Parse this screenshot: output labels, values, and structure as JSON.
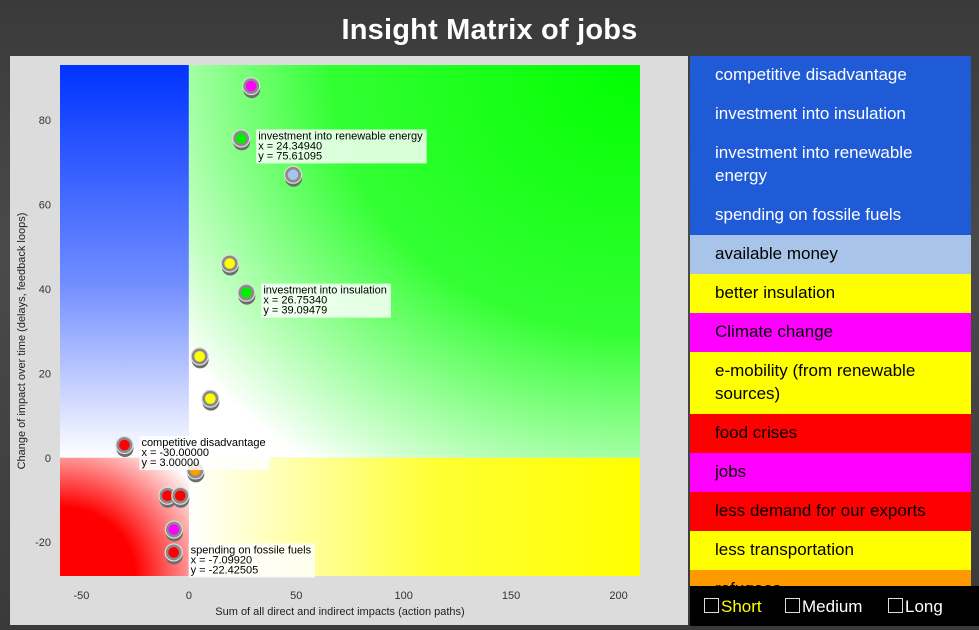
{
  "title": "Insight Matrix of jobs",
  "chart_data": {
    "type": "scatter",
    "title": "Insight Matrix of jobs",
    "xlabel": "Sum of all direct and indirect impacts (action paths)",
    "ylabel": "Change of impact over time (delays, feedback loops)",
    "xlim": [
      -60,
      210
    ],
    "ylim": [
      -28,
      93
    ],
    "xticks": [
      -50,
      0,
      50,
      100,
      150,
      200
    ],
    "yticks": [
      -20,
      0,
      20,
      40,
      60,
      80
    ],
    "points": [
      {
        "x": 29,
        "y": 88,
        "color": "#ff00ff",
        "label": ""
      },
      {
        "x": 24.3494,
        "y": 75.61095,
        "color": "#00ee00",
        "label": "investment into renewable energy",
        "xlabel_text": "x = 24.34940",
        "ylabel_text": "y = 75.61095"
      },
      {
        "x": 48.5,
        "y": 67,
        "color": "#a8c4e8",
        "label": ""
      },
      {
        "x": 19,
        "y": 46,
        "color": "#ffff00",
        "label": ""
      },
      {
        "x": 26.7534,
        "y": 39.09479,
        "color": "#00ee00",
        "label": "investment into insulation",
        "xlabel_text": "x = 26.75340",
        "ylabel_text": "y = 39.09479"
      },
      {
        "x": 5,
        "y": 24,
        "color": "#ffff00",
        "label": ""
      },
      {
        "x": 10,
        "y": 14,
        "color": "#ffff00",
        "label": ""
      },
      {
        "x": -30,
        "y": 3,
        "color": "#ff0000",
        "label": "competitive disadvantage",
        "xlabel_text": "x = -30.00000",
        "ylabel_text": "y = 3.00000"
      },
      {
        "x": 3,
        "y": -3,
        "color": "#ff9900",
        "label": ""
      },
      {
        "x": -10,
        "y": -9,
        "color": "#ff0000",
        "label": ""
      },
      {
        "x": -4,
        "y": -9,
        "color": "#ff0000",
        "label": ""
      },
      {
        "x": -7,
        "y": -17,
        "color": "#ff00ff",
        "label": ""
      },
      {
        "x": -7.0992,
        "y": -22.42505,
        "color": "#ff0000",
        "label": "spending on fossile fuels",
        "xlabel_text": "x = -7.09920",
        "ylabel_text": "y = -22.42505"
      }
    ],
    "quadrant_colors": {
      "top_left": "#0033ff",
      "top_right": "#00ff00",
      "bottom_right": "#ffff00",
      "bottom_left": "#ff0000"
    }
  },
  "legend": [
    {
      "label": "competitive disadvantage",
      "bg": "#1f5bd6",
      "fg": "#ffffff"
    },
    {
      "label": "investment into insulation",
      "bg": "#1f5bd6",
      "fg": "#ffffff"
    },
    {
      "label": "investment into renewable energy",
      "bg": "#1f5bd6",
      "fg": "#ffffff"
    },
    {
      "label": "spending on fossile fuels",
      "bg": "#1f5bd6",
      "fg": "#ffffff"
    },
    {
      "label": "available money",
      "bg": "#a8c4e8",
      "fg": "#000000"
    },
    {
      "label": "better insulation",
      "bg": "#ffff00",
      "fg": "#000000"
    },
    {
      "label": "Climate change",
      "bg": "#ff00ff",
      "fg": "#000000"
    },
    {
      "label": "e-mobility (from renewable sources)",
      "bg": "#ffff00",
      "fg": "#000000"
    },
    {
      "label": "food crises",
      "bg": "#ff0000",
      "fg": "#000000"
    },
    {
      "label": "jobs",
      "bg": "#ff00ff",
      "fg": "#000000"
    },
    {
      "label": "less demand for our exports",
      "bg": "#ff0000",
      "fg": "#000000"
    },
    {
      "label": "less transportation",
      "bg": "#ffff00",
      "fg": "#000000"
    },
    {
      "label": "refugees",
      "bg": "#ff9900",
      "fg": "#000000"
    }
  ],
  "timeframe": {
    "options": [
      {
        "label": "Short",
        "selected": true,
        "color": "#ffff00"
      },
      {
        "label": "Medium",
        "selected": false,
        "color": "#ffffff"
      },
      {
        "label": "Long",
        "selected": false,
        "color": "#ffffff"
      }
    ]
  }
}
